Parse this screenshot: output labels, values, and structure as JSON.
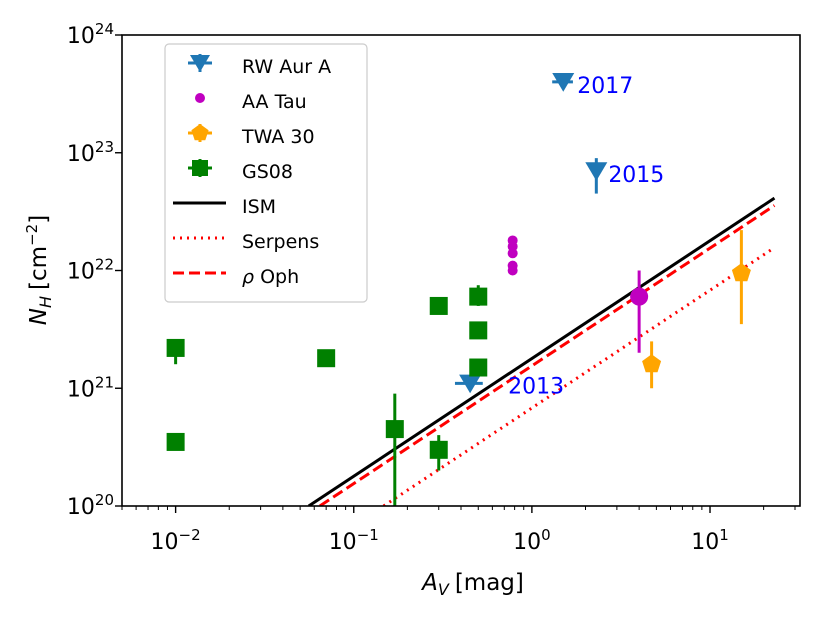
{
  "chart_data": {
    "type": "scatter",
    "xlabel_base": "A",
    "xlabel_sub": "V",
    "xlabel_unit": "[mag]",
    "ylabel_base": "N",
    "ylabel_sub": "H",
    "ylabel_unit_pre": "[cm",
    "ylabel_unit_exp": "−2",
    "ylabel_unit_post": "]",
    "xscale": "log",
    "yscale": "log",
    "xlim": [
      0.005,
      32
    ],
    "ylim": [
      1e+20,
      1e+24
    ],
    "x_ticks": [
      {
        "value": 0.01,
        "base": "10",
        "exp": "−2"
      },
      {
        "value": 0.1,
        "base": "10",
        "exp": "−1"
      },
      {
        "value": 1,
        "base": "10",
        "exp": "0"
      },
      {
        "value": 10,
        "base": "10",
        "exp": "1"
      }
    ],
    "y_ticks": [
      {
        "value": 1e+20,
        "base": "10",
        "exp": "20"
      },
      {
        "value": 1e+21,
        "base": "10",
        "exp": "21"
      },
      {
        "value": 1e+22,
        "base": "10",
        "exp": "22"
      },
      {
        "value": 1e+23,
        "base": "10",
        "exp": "23"
      },
      {
        "value": 1e+24,
        "base": "10",
        "exp": "24"
      }
    ],
    "legend_position": "top-left",
    "series": [
      {
        "name": "RW Aur A",
        "marker": "triangle-down",
        "color": "#1f77b4",
        "points": [
          {
            "x": 0.45,
            "y": 1.1e+21,
            "xerr": [
              0.37,
              0.53
            ],
            "label": "2013"
          },
          {
            "x": 2.3,
            "y": 7e+22,
            "yerr": [
              4.5e+22,
              9e+22
            ],
            "label": "2015"
          },
          {
            "x": 1.5,
            "y": 4e+23,
            "xerr": [
              1.3,
              1.7
            ],
            "label": "2017"
          }
        ]
      },
      {
        "name": "AA Tau",
        "marker": "circle",
        "color": "#c000c0",
        "points": [
          {
            "x": 0.78,
            "y": 1.8e+22
          },
          {
            "x": 0.78,
            "y": 1.6e+22
          },
          {
            "x": 0.78,
            "y": 1.4e+22
          },
          {
            "x": 0.78,
            "y": 1.1e+22
          },
          {
            "x": 0.78,
            "y": 1e+22
          },
          {
            "x": 4.0,
            "y": 6e+21,
            "yerr": [
              2e+21,
              1e+22
            ],
            "big": true
          }
        ]
      },
      {
        "name": "TWA 30",
        "marker": "pentagon",
        "color": "#ffa500",
        "points": [
          {
            "x": 15,
            "y": 9.5e+21,
            "yerr": [
              3.5e+21,
              2.2e+22
            ]
          },
          {
            "x": 4.7,
            "y": 1.6e+21,
            "yerr": [
              1e+21,
              2.5e+21
            ]
          }
        ]
      },
      {
        "name": "GS08",
        "marker": "square",
        "color": "#008000",
        "points": [
          {
            "x": 0.01,
            "y": 2.2e+21,
            "yerr": [
              1.6e+21,
              2.4e+21
            ]
          },
          {
            "x": 0.01,
            "y": 3.5e+20
          },
          {
            "x": 0.07,
            "y": 1.8e+21
          },
          {
            "x": 0.17,
            "y": 4.5e+20,
            "yerr": [
              1e+20,
              9e+20
            ]
          },
          {
            "x": 0.3,
            "y": 5e+21
          },
          {
            "x": 0.3,
            "y": 3e+20,
            "yerr": [
              2e+20,
              4e+20
            ]
          },
          {
            "x": 0.5,
            "y": 6e+21,
            "yerr": [
              5e+21,
              7.5e+21
            ]
          },
          {
            "x": 0.5,
            "y": 3.1e+21
          },
          {
            "x": 0.5,
            "y": 1.5e+21
          }
        ]
      }
    ],
    "lines": [
      {
        "name": "ISM",
        "style": "solid",
        "color": "#000000",
        "coef": 1.79e+21
      },
      {
        "name": "Serpens",
        "style": "dotted",
        "color": "#ff0000",
        "coef": 6.8e+20
      },
      {
        "name": "ρ Oph",
        "style": "dashed",
        "color": "#ff0000",
        "coef": 1.55e+21
      }
    ],
    "legend_labels": {
      "rw": "RW Aur A",
      "aa": "AA Tau",
      "twa": "TWA 30",
      "gs": "GS08",
      "ism": "ISM",
      "serp": "Serpens",
      "oph_sym": "ρ",
      "oph_rest": " Oph"
    }
  }
}
